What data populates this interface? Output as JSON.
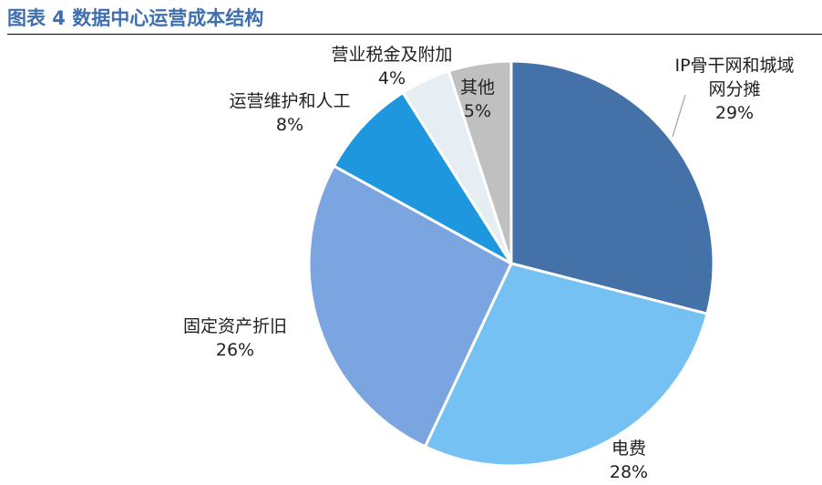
{
  "header": {
    "title": "图表 4 数据中心运营成本结构"
  },
  "chart_data": {
    "type": "pie",
    "title": "",
    "slices": [
      {
        "label": "IP骨干网和城域网分摊",
        "label_lines": [
          "IP骨干网和城域",
          "网分摊"
        ],
        "value": 29,
        "value_label": "29%",
        "color": "#4472a8"
      },
      {
        "label": "电费",
        "label_lines": [
          "电费"
        ],
        "value": 28,
        "value_label": "28%",
        "color": "#75c1f3"
      },
      {
        "label": "固定资产折旧",
        "label_lines": [
          "固定资产折旧"
        ],
        "value": 26,
        "value_label": "26%",
        "color": "#7ba5e0"
      },
      {
        "label": "运营维护和人工",
        "label_lines": [
          "运营维护和人工"
        ],
        "value": 8,
        "value_label": "8%",
        "color": "#1e97df"
      },
      {
        "label": "营业税金及附加",
        "label_lines": [
          "营业税金及附加"
        ],
        "value": 4,
        "value_label": "4%",
        "color": "#e6eef3"
      },
      {
        "label": "其他",
        "label_lines": [
          "其他"
        ],
        "value": 5,
        "value_label": "5%",
        "color": "#c0c0c0"
      }
    ]
  }
}
